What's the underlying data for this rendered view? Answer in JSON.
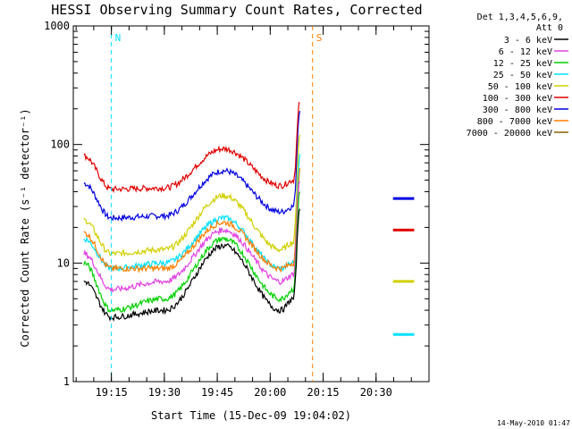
{
  "chart_data": {
    "type": "line",
    "title": "HESSI Observing Summary Count Rates, Corrected",
    "xlabel": "Start Time (15-Dec-09 19:04:02)",
    "ylabel": "Corrected Count Rate (s⁻¹ detector⁻¹)",
    "yscale": "log",
    "xlim_minutes": [
      19.07,
      20.75
    ],
    "xlim": [
      "19:04:02",
      "20:45:00"
    ],
    "ylim": [
      1,
      1000
    ],
    "x_ticks": [
      "19:15",
      "19:30",
      "19:45",
      "20:00",
      "20:15",
      "20:30"
    ],
    "y_ticks": [
      "1",
      "10",
      "100",
      "1000"
    ],
    "legend_header": [
      "Det 1,3,4,5,6,9,",
      "Att 0"
    ],
    "legend_position": "right",
    "date_stamp": "14-May-2010 01:47",
    "markers": [
      {
        "label": "N",
        "color": "#00e0ff",
        "time": "19:15"
      },
      {
        "label": "S",
        "color": "#ff7f00",
        "time": "20:12"
      }
    ],
    "series": [
      {
        "name": "3 - 6 keV",
        "color": "#000000"
      },
      {
        "name": "6 - 12 keV",
        "color": "#e040e0"
      },
      {
        "name": "12 - 25 keV",
        "color": "#00d000"
      },
      {
        "name": "25 - 50 keV",
        "color": "#00e0ff"
      },
      {
        "name": "50 - 100 keV",
        "color": "#d0d000"
      },
      {
        "name": "100 - 300 keV",
        "color": "#e00000"
      },
      {
        "name": "300 - 800 keV",
        "color": "#0000e0"
      },
      {
        "name": "800 - 7000 keV",
        "color": "#ff7f00"
      },
      {
        "name": "7000 - 20000 keV",
        "color": "#8b6000"
      }
    ],
    "series_points": {
      "times": [
        19.12,
        19.25,
        19.5,
        19.78,
        20.05,
        20.11,
        20.14
      ],
      "300 - 800 keV": [
        47,
        24,
        25,
        60,
        27,
        30,
        200
      ],
      "100 - 300 keV": [
        80,
        42,
        43,
        92,
        45,
        50,
        230
      ],
      "50 - 100 keV": [
        23,
        12,
        13,
        37,
        13,
        15,
        120
      ],
      "25 - 50 keV": [
        16,
        9,
        10,
        24,
        9,
        10,
        80
      ],
      "800 - 7000 keV": [
        18,
        9,
        9,
        22,
        9,
        10,
        60
      ],
      "6 - 12 keV": [
        12,
        6,
        7,
        19,
        7,
        8,
        50
      ],
      "12 - 25 keV": [
        10,
        4,
        5,
        16,
        5,
        6,
        40
      ],
      "3 - 6 keV": [
        7,
        3.5,
        4,
        14,
        4,
        5,
        30
      ]
    },
    "late_segment": {
      "times": [
        20.58,
        20.68
      ],
      "300 - 800 keV": 35,
      "100 - 300 keV": 19,
      "50 - 100 keV": 7,
      "25 - 50 keV": 2.5
    }
  }
}
